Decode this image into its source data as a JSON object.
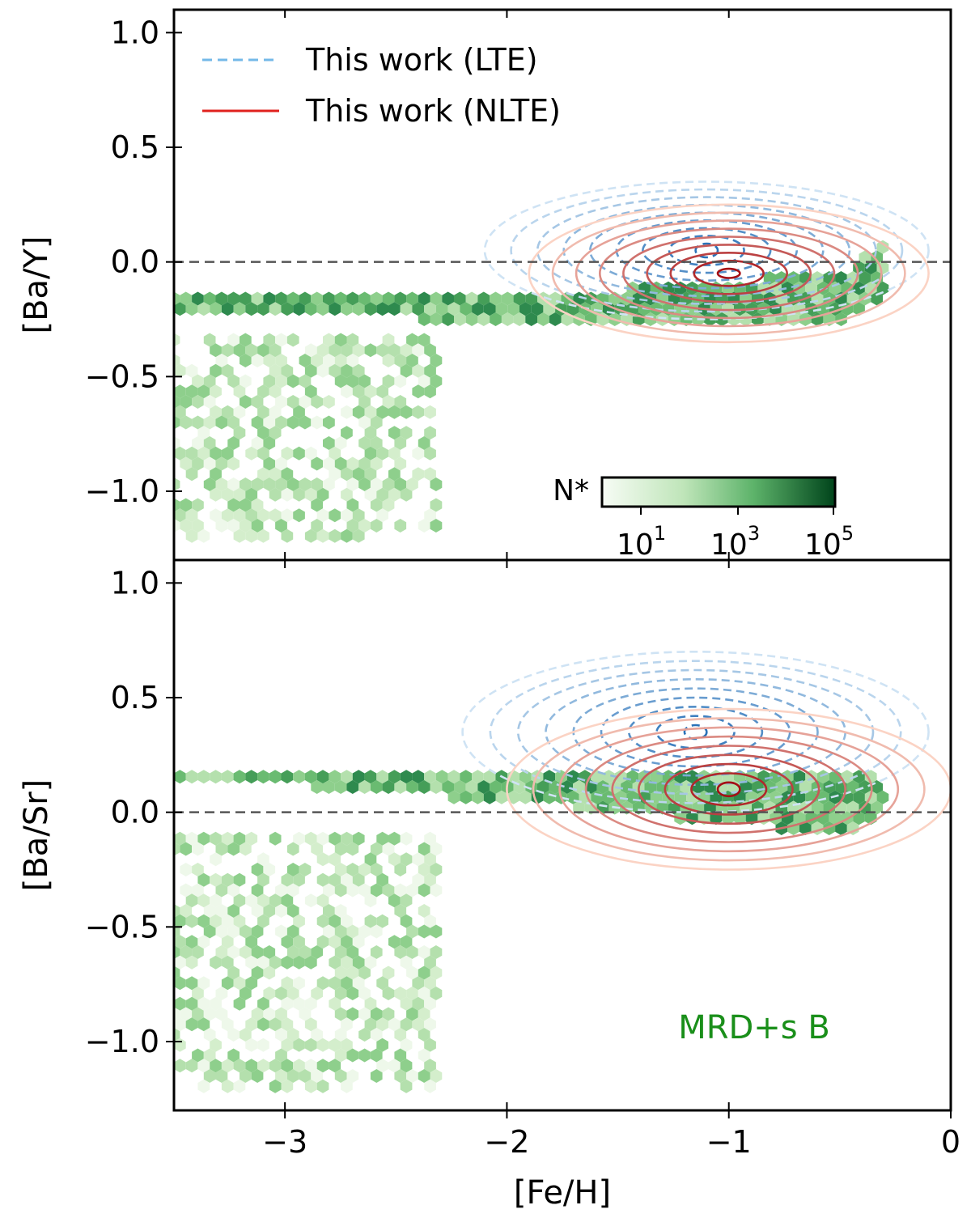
{
  "chart_data": {
    "type": "scatter",
    "xlabel": "[Fe/H]",
    "xlim": [
      -3.5,
      0.0
    ],
    "xticks": [
      -3,
      -2,
      -1,
      0
    ],
    "xtick_labels": [
      "−3",
      "−2",
      "−1",
      "0"
    ],
    "legend": {
      "location": "top-left",
      "entries": [
        {
          "label": "This work (LTE)",
          "style": "dashed",
          "color": "#74b9e8"
        },
        {
          "label": "This work (NLTE)",
          "style": "solid",
          "color": "#e0211d"
        }
      ]
    },
    "colorbar": {
      "label": "N*",
      "scale": "log",
      "ticks": [
        "10",
        "10",
        "10"
      ],
      "tick_exponents": [
        "1",
        "3",
        "5"
      ],
      "cmap": "Greens"
    },
    "reference_line": {
      "y": 0.0,
      "style": "dashed",
      "color": "#555555"
    },
    "colors": {
      "hex_light": "#dff2d9",
      "hex_mid": "#7cc47f",
      "hex_dark": "#2e8a4e",
      "lte_light": "#cfe3f4",
      "lte_dark": "#2a72b8",
      "nlte_light": "#fbd3c4",
      "nlte_dark": "#a50f15",
      "annotation": "#1a8f1a"
    },
    "panels": [
      {
        "ylabel": "[Ba/Y]",
        "ylim": [
          -1.3,
          1.1
        ],
        "yticks": [
          1.0,
          0.5,
          0.0,
          -0.5,
          -1.0
        ],
        "ytick_labels": [
          "1.0",
          "0.5",
          "0.0",
          "−0.5",
          "−1.0"
        ],
        "model_band": {
          "fe_h": [
            -3.5,
            -3.0,
            -2.5,
            -2.0,
            -1.5,
            -1.0,
            -0.5,
            -0.3
          ],
          "ba_y_upper": [
            -0.15,
            -0.15,
            -0.15,
            -0.15,
            -0.12,
            -0.08,
            -0.05,
            0.08
          ],
          "ba_y_lower": [
            -0.22,
            -0.22,
            -0.24,
            -0.28,
            -0.28,
            -0.28,
            -0.28,
            -0.15
          ]
        },
        "scatter_tail": {
          "fe_h": [
            -3.5,
            -2.3
          ],
          "ba_y_range": [
            -1.2,
            -0.3
          ]
        },
        "lte_contours": {
          "center": [
            -1.1,
            0.05
          ],
          "radius_x": [
            0.05,
            1.0
          ],
          "radius_y": [
            0.03,
            0.3
          ]
        },
        "nlte_contours": {
          "center": [
            -1.0,
            -0.05
          ],
          "radius_x": [
            0.05,
            0.9
          ],
          "radius_y": [
            0.02,
            0.3
          ]
        }
      },
      {
        "ylabel": "[Ba/Sr]",
        "ylim": [
          -1.3,
          1.1
        ],
        "yticks": [
          1.0,
          0.5,
          0.0,
          -0.5,
          -1.0
        ],
        "ytick_labels": [
          "1.0",
          "0.5",
          "0.0",
          "−0.5",
          "−1.0"
        ],
        "annotation": "MRD+s B",
        "model_band": {
          "fe_h": [
            -3.5,
            -3.0,
            -2.5,
            -2.0,
            -1.5,
            -1.0,
            -0.5,
            -0.3
          ],
          "ba_sr_upper": [
            0.2,
            0.2,
            0.2,
            0.2,
            0.18,
            0.2,
            0.2,
            0.15
          ],
          "ba_sr_lower": [
            0.12,
            0.12,
            0.08,
            0.05,
            0.0,
            -0.05,
            -0.1,
            0.0
          ]
        },
        "scatter_tail": {
          "fe_h": [
            -3.5,
            -2.3
          ],
          "ba_sr_range": [
            -1.2,
            -0.1
          ]
        },
        "lte_contours": {
          "center": [
            -1.15,
            0.35
          ],
          "radius_x": [
            0.05,
            1.05
          ],
          "radius_y": [
            0.03,
            0.35
          ]
        },
        "nlte_contours": {
          "center": [
            -1.0,
            0.1
          ],
          "radius_x": [
            0.05,
            1.0
          ],
          "radius_y": [
            0.03,
            0.35
          ]
        }
      }
    ]
  }
}
